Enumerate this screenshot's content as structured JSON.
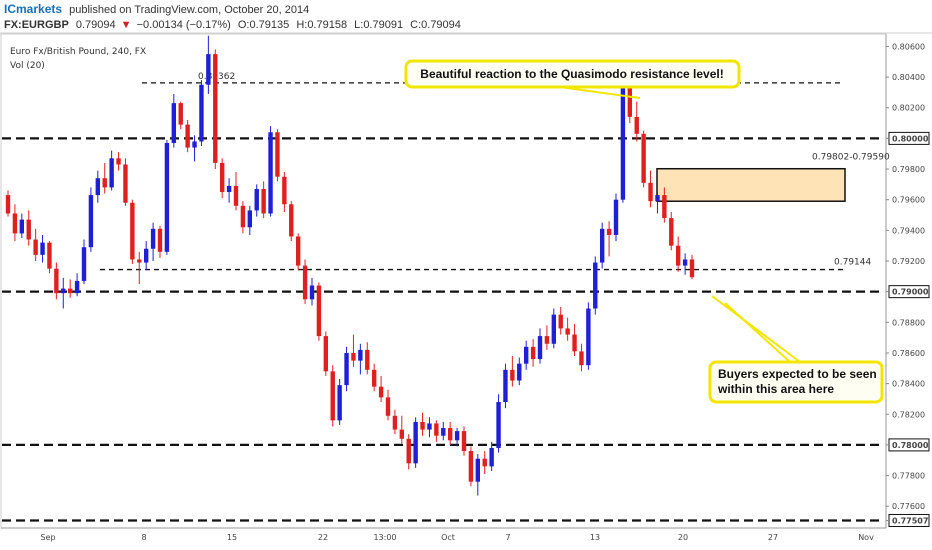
{
  "header": {
    "brand": "ICmarkets",
    "published": "published on TradingView.com, October 20, 2014",
    "symbol": "FX:EURGBP",
    "last": "0.79094",
    "change_arrow": "▼",
    "change": "−0.00134 (−0.17%)",
    "open": "O:0.79135",
    "high": "H:0.79158",
    "low": "L:0.79091",
    "close": "C:0.79094",
    "chart_title": "Euro Fx/British Pound, 240, FX",
    "volume_label": "Vol (20)"
  },
  "colors": {
    "up": "#1f1fd6",
    "down": "#e02020",
    "brand": "#1a6fb5",
    "callout_border": "#f2e600",
    "callout_fill": "#fffef2",
    "zone_fill": "#fde3b5",
    "down_value": "#d42020"
  },
  "chart_data": {
    "type": "candlestick",
    "title": "Euro Fx/British Pound, 240, FX",
    "ylim": [
      0.77497,
      0.80655
    ],
    "y_ticks": [
      "0.80600",
      "0.80400",
      "0.80200",
      "0.80000",
      "0.79800",
      "0.79600",
      "0.79400",
      "0.79200",
      "0.79000",
      "0.78800",
      "0.78600",
      "0.78400",
      "0.78200",
      "0.78000",
      "0.77800",
      "0.77600",
      "0.77507"
    ],
    "x_ticks": [
      "Sep",
      "8",
      "15",
      "22",
      "13:00",
      "Oct",
      "7",
      "13",
      "20",
      "27",
      "Nov"
    ],
    "levels": [
      {
        "price": 0.80362,
        "style": "dashed-thin",
        "label": "0.80362"
      },
      {
        "price": 0.8,
        "style": "dashed-thick",
        "label": "0.80000"
      },
      {
        "price": 0.79144,
        "style": "dashed-thin",
        "label": "0.79144"
      },
      {
        "price": 0.79,
        "style": "dashed-thick",
        "label": "0.79000"
      },
      {
        "price": 0.78,
        "style": "dashed-thick",
        "label": "0.78000"
      },
      {
        "price": 0.77507,
        "style": "dashed-thick",
        "label": "0.77507"
      }
    ],
    "zone": {
      "top": 0.79802,
      "bottom": 0.7959,
      "label": "0.79802-0.79590"
    },
    "last_price": 0.79094,
    "annotations": [
      {
        "text": "Beautiful reaction to the Quasimodo resistance level!"
      },
      {
        "lines": [
          "Buyers expected to be seen",
          "within this area here"
        ]
      }
    ],
    "candles": [
      [
        0.7963,
        0.7966,
        0.7949,
        0.7951
      ],
      [
        0.7951,
        0.7957,
        0.7933,
        0.7938
      ],
      [
        0.7938,
        0.7951,
        0.7935,
        0.7947
      ],
      [
        0.7947,
        0.7953,
        0.793,
        0.7934
      ],
      [
        0.7934,
        0.7941,
        0.792,
        0.7924
      ],
      [
        0.7924,
        0.7937,
        0.7919,
        0.7932
      ],
      [
        0.7932,
        0.7933,
        0.7912,
        0.7915
      ],
      [
        0.7915,
        0.7919,
        0.7895,
        0.7899
      ],
      [
        0.7899,
        0.7909,
        0.7889,
        0.7902
      ],
      [
        0.7902,
        0.7908,
        0.7896,
        0.7899
      ],
      [
        0.7899,
        0.7912,
        0.7897,
        0.7907
      ],
      [
        0.7907,
        0.7934,
        0.7905,
        0.7929
      ],
      [
        0.7929,
        0.7968,
        0.7926,
        0.7963
      ],
      [
        0.7963,
        0.7979,
        0.7958,
        0.7974
      ],
      [
        0.7974,
        0.7984,
        0.7964,
        0.7968
      ],
      [
        0.7968,
        0.7992,
        0.7966,
        0.7987
      ],
      [
        0.7987,
        0.7991,
        0.7979,
        0.7983
      ],
      [
        0.7983,
        0.7987,
        0.7956,
        0.7958
      ],
      [
        0.7958,
        0.796,
        0.7918,
        0.7921
      ],
      [
        0.7921,
        0.7926,
        0.7905,
        0.7919
      ],
      [
        0.7919,
        0.7933,
        0.7914,
        0.7928
      ],
      [
        0.7928,
        0.7945,
        0.792,
        0.7941
      ],
      [
        0.7941,
        0.7943,
        0.7922,
        0.7926
      ],
      [
        0.7926,
        0.7999,
        0.7924,
        0.7997
      ],
      [
        0.7997,
        0.8029,
        0.7994,
        0.8023
      ],
      [
        0.8023,
        0.8024,
        0.8006,
        0.8009
      ],
      [
        0.8009,
        0.8012,
        0.7991,
        0.7994
      ],
      [
        0.7994,
        0.8002,
        0.7985,
        0.7998
      ],
      [
        0.7998,
        0.8038,
        0.7995,
        0.8035
      ],
      [
        0.8035,
        0.8067,
        0.8029,
        0.8055
      ],
      [
        0.8055,
        0.8058,
        0.798,
        0.7984
      ],
      [
        0.7984,
        0.7987,
        0.7961,
        0.7965
      ],
      [
        0.7965,
        0.7974,
        0.7958,
        0.7969
      ],
      [
        0.7969,
        0.7978,
        0.7953,
        0.7956
      ],
      [
        0.7956,
        0.7959,
        0.7938,
        0.7942
      ],
      [
        0.7942,
        0.7956,
        0.7937,
        0.7953
      ],
      [
        0.7953,
        0.797,
        0.7949,
        0.7967
      ],
      [
        0.7967,
        0.7972,
        0.7948,
        0.7951
      ],
      [
        0.7951,
        0.8008,
        0.7949,
        0.8004
      ],
      [
        0.8004,
        0.8006,
        0.7972,
        0.7975
      ],
      [
        0.7975,
        0.7978,
        0.7952,
        0.7957
      ],
      [
        0.7957,
        0.7959,
        0.7933,
        0.7936
      ],
      [
        0.7936,
        0.7938,
        0.7914,
        0.7917
      ],
      [
        0.7917,
        0.7921,
        0.7892,
        0.7895
      ],
      [
        0.7895,
        0.7909,
        0.7891,
        0.7904
      ],
      [
        0.7904,
        0.7906,
        0.7868,
        0.7871
      ],
      [
        0.7871,
        0.7874,
        0.7845,
        0.7848
      ],
      [
        0.7848,
        0.7852,
        0.7812,
        0.7816
      ],
      [
        0.7816,
        0.7843,
        0.7813,
        0.7839
      ],
      [
        0.7839,
        0.7864,
        0.7835,
        0.786
      ],
      [
        0.786,
        0.7872,
        0.7851,
        0.7855
      ],
      [
        0.7855,
        0.7866,
        0.7846,
        0.7862
      ],
      [
        0.7862,
        0.7867,
        0.7846,
        0.7849
      ],
      [
        0.7849,
        0.7853,
        0.7835,
        0.7838
      ],
      [
        0.7838,
        0.7845,
        0.7828,
        0.7831
      ],
      [
        0.7831,
        0.7836,
        0.7816,
        0.7819
      ],
      [
        0.7819,
        0.7823,
        0.7807,
        0.781
      ],
      [
        0.781,
        0.7819,
        0.7801,
        0.7804
      ],
      [
        0.7804,
        0.7807,
        0.7784,
        0.7788
      ],
      [
        0.7788,
        0.7818,
        0.7785,
        0.7815
      ],
      [
        0.7815,
        0.7821,
        0.7806,
        0.781
      ],
      [
        0.781,
        0.7818,
        0.7805,
        0.7814
      ],
      [
        0.7814,
        0.7816,
        0.7802,
        0.7806
      ],
      [
        0.7806,
        0.7815,
        0.7803,
        0.7811
      ],
      [
        0.7811,
        0.7815,
        0.78,
        0.7803
      ],
      [
        0.7803,
        0.7811,
        0.7799,
        0.7809
      ],
      [
        0.7809,
        0.7812,
        0.7793,
        0.7796
      ],
      [
        0.7796,
        0.7799,
        0.7773,
        0.7776
      ],
      [
        0.7776,
        0.7794,
        0.7767,
        0.7791
      ],
      [
        0.7791,
        0.7796,
        0.7781,
        0.7786
      ],
      [
        0.7786,
        0.7802,
        0.7783,
        0.7798
      ],
      [
        0.7798,
        0.7833,
        0.7795,
        0.7828
      ],
      [
        0.7828,
        0.7853,
        0.7824,
        0.7849
      ],
      [
        0.7849,
        0.7858,
        0.7838,
        0.7842
      ],
      [
        0.7842,
        0.7857,
        0.7839,
        0.7853
      ],
      [
        0.7853,
        0.7868,
        0.7849,
        0.7864
      ],
      [
        0.7864,
        0.7869,
        0.7851,
        0.7856
      ],
      [
        0.7856,
        0.7876,
        0.7853,
        0.7871
      ],
      [
        0.7871,
        0.7878,
        0.7862,
        0.7866
      ],
      [
        0.7866,
        0.7889,
        0.7863,
        0.7885
      ],
      [
        0.7885,
        0.789,
        0.7872,
        0.7876
      ],
      [
        0.7876,
        0.7883,
        0.7868,
        0.7872
      ],
      [
        0.7872,
        0.7879,
        0.7858,
        0.7861
      ],
      [
        0.7861,
        0.7866,
        0.7848,
        0.7852
      ],
      [
        0.7852,
        0.7893,
        0.7849,
        0.7889
      ],
      [
        0.7889,
        0.7923,
        0.7885,
        0.7919
      ],
      [
        0.7919,
        0.7945,
        0.7915,
        0.7941
      ],
      [
        0.7941,
        0.7946,
        0.7923,
        0.7937
      ],
      [
        0.7937,
        0.7964,
        0.7933,
        0.796
      ],
      [
        0.796,
        0.8045,
        0.7958,
        0.8038
      ],
      [
        0.8038,
        0.8041,
        0.801,
        0.8014
      ],
      [
        0.8014,
        0.8024,
        0.7998,
        0.8003
      ],
      [
        0.8003,
        0.8005,
        0.7968,
        0.7971
      ],
      [
        0.7971,
        0.7979,
        0.7955,
        0.7959
      ],
      [
        0.7959,
        0.7965,
        0.7951,
        0.7963
      ],
      [
        0.7963,
        0.7968,
        0.7945,
        0.7948
      ],
      [
        0.7948,
        0.7952,
        0.7927,
        0.793
      ],
      [
        0.793,
        0.7936,
        0.7913,
        0.7917
      ],
      [
        0.7917,
        0.7925,
        0.7911,
        0.7921
      ],
      [
        0.7921,
        0.7924,
        0.7908,
        0.79094
      ]
    ]
  }
}
